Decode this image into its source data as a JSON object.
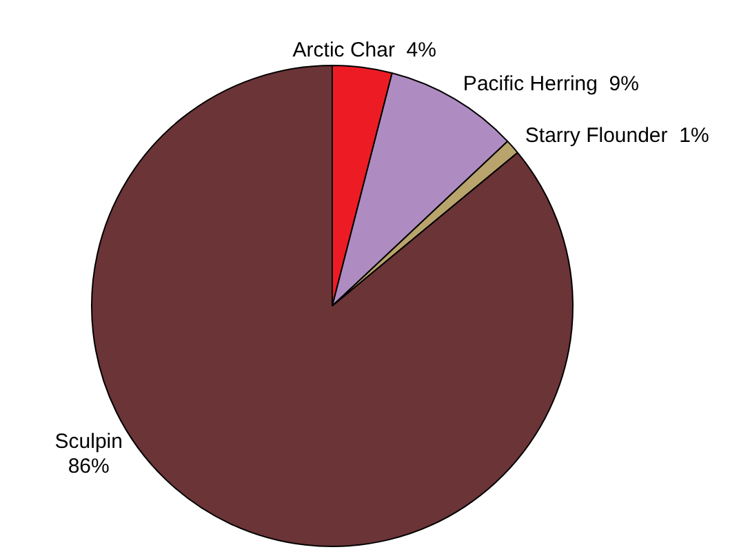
{
  "chart_data": {
    "type": "pie",
    "categories": [
      "Arctic Char",
      "Pacific Herring",
      "Starry Flounder",
      "Sculpin"
    ],
    "values": [
      4,
      9,
      1,
      86
    ],
    "value_labels": [
      "4%",
      "9%",
      "1%",
      "86%"
    ],
    "colors": [
      "#ed1c24",
      "#ae8cc2",
      "#b8a46c",
      "#6b3437"
    ]
  }
}
